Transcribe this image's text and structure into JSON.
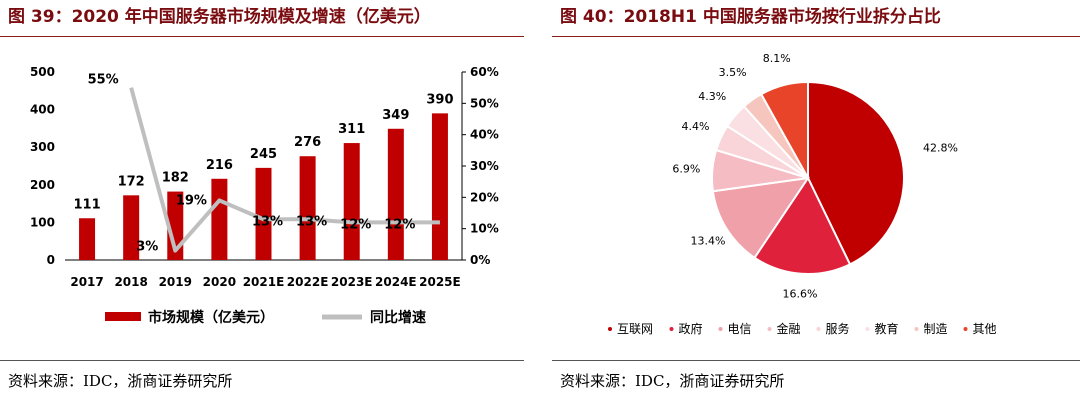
{
  "left": {
    "title": "图 39：2020 年中国服务器市场规模及增速（亿美元）",
    "source": "资料来源：IDC，浙商证券研究所"
  },
  "right": {
    "title": "图 40：2018H1 中国服务器市场按行业拆分占比",
    "source": "资料来源：IDC，浙商证券研究所"
  },
  "chart_data": [
    {
      "type": "bar",
      "title": "2020 年中国服务器市场规模及增速（亿美元）",
      "categories": [
        "2017",
        "2018",
        "2019",
        "2020",
        "2021E",
        "2022E",
        "2023E",
        "2024E",
        "2025E"
      ],
      "series": [
        {
          "name": "市场规模（亿美元）",
          "axis": "left",
          "kind": "bar",
          "color": "#c00000",
          "values": [
            111,
            172,
            182,
            216,
            245,
            276,
            311,
            349,
            390
          ],
          "labels": [
            "111",
            "172",
            "182",
            "216",
            "245",
            "276",
            "311",
            "349",
            "390"
          ]
        },
        {
          "name": "同比增速",
          "axis": "right",
          "kind": "line",
          "color": "#bfbfbf",
          "values": [
            null,
            55,
            3,
            19,
            13,
            13,
            12,
            12,
            12
          ],
          "labels": [
            "",
            "55%",
            "3%",
            "19%",
            "13%",
            "13%",
            "12%",
            "12%",
            ""
          ]
        }
      ],
      "ylim": [
        0,
        500
      ],
      "yticks": [
        "0",
        "100",
        "200",
        "300",
        "400",
        "500"
      ],
      "y2lim": [
        0,
        60
      ],
      "y2ticks": [
        "0%",
        "10%",
        "20%",
        "30%",
        "40%",
        "50%",
        "60%"
      ],
      "legend": [
        "市场规模（亿美元）",
        "同比增速"
      ],
      "legend_position": "bottom"
    },
    {
      "type": "pie",
      "title": "2018H1 中国服务器市场按行业拆分占比",
      "categories": [
        "互联网",
        "政府",
        "电信",
        "金融",
        "服务",
        "教育",
        "制造",
        "其他"
      ],
      "values": [
        42.8,
        16.6,
        13.4,
        6.9,
        4.4,
        4.3,
        3.5,
        8.1
      ],
      "labels": [
        "42.8%",
        "16.6%",
        "13.4%",
        "6.9%",
        "4.4%",
        "4.3%",
        "3.5%",
        "8.1%"
      ],
      "colors": [
        "#c00000",
        "#e0213c",
        "#f0a0a8",
        "#f5bcc4",
        "#f9d4d9",
        "#fbe0e3",
        "#f6c6be",
        "#e8442a"
      ],
      "legend_position": "bottom"
    }
  ]
}
